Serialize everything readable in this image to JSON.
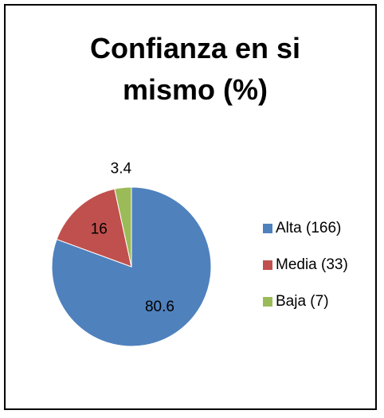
{
  "chart_data": {
    "type": "pie",
    "title": "Confianza en si mismo (%)",
    "categories": [
      "Alta (166)",
      "Media (33)",
      "Baja (7)"
    ],
    "values": [
      80.6,
      16,
      3.4
    ],
    "colors": [
      "#4f81bd",
      "#c0504d",
      "#9bbb59"
    ],
    "legend": "right"
  }
}
